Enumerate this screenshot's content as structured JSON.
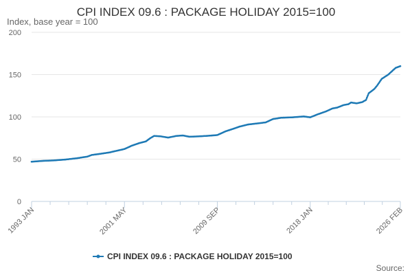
{
  "chart_data": {
    "type": "line",
    "title": "CPI INDEX 09.6 : PACKAGE HOLIDAY 2015=100",
    "subtitle": "Index, base year = 100",
    "ylim": [
      0,
      200
    ],
    "y_ticks": [
      "0",
      "50",
      "100",
      "150",
      "200"
    ],
    "x_ticks": [
      "1993 JAN",
      "2001 MAY",
      "2009 SEP",
      "2018 JAN",
      "2026 FEB"
    ],
    "grid": true,
    "legend_position": "bottom",
    "source_label": "Source:",
    "series": [
      {
        "name": "CPI INDEX 09.6 : PACKAGE HOLIDAY 2015=100",
        "color": "#1f7ab5",
        "points": [
          [
            "1993-01",
            47
          ],
          [
            "1994-01",
            48
          ],
          [
            "1995-01",
            48.5
          ],
          [
            "1996-01",
            49.5
          ],
          [
            "1997-01",
            51
          ],
          [
            "1998-01",
            53
          ],
          [
            "1998-06",
            55
          ],
          [
            "1999-01",
            56
          ],
          [
            "2000-01",
            58
          ],
          [
            "2000-09",
            60
          ],
          [
            "2001-05",
            62
          ],
          [
            "2002-01",
            66
          ],
          [
            "2002-09",
            69
          ],
          [
            "2003-04",
            71
          ],
          [
            "2003-09",
            75
          ],
          [
            "2004-01",
            77.5
          ],
          [
            "2004-08",
            77
          ],
          [
            "2005-04",
            75.5
          ],
          [
            "2006-01",
            77.5
          ],
          [
            "2006-08",
            78
          ],
          [
            "2007-03",
            76.5
          ],
          [
            "2008-01",
            77
          ],
          [
            "2008-09",
            77.5
          ],
          [
            "2009-09",
            78.5
          ],
          [
            "2010-06",
            83
          ],
          [
            "2011-01",
            85.5
          ],
          [
            "2011-09",
            88.5
          ],
          [
            "2012-06",
            91
          ],
          [
            "2013-06",
            92.5
          ],
          [
            "2014-01",
            93.5
          ],
          [
            "2014-09",
            97.5
          ],
          [
            "2015-06",
            99
          ],
          [
            "2016-06",
            99.5
          ],
          [
            "2017-06",
            100.5
          ],
          [
            "2018-01",
            99.5
          ],
          [
            "2018-09",
            103
          ],
          [
            "2019-06",
            106.5
          ],
          [
            "2020-01",
            110
          ],
          [
            "2020-06",
            111
          ],
          [
            "2021-01",
            114
          ],
          [
            "2021-06",
            115
          ],
          [
            "2021-09",
            117
          ],
          [
            "2022-03",
            116
          ],
          [
            "2022-09",
            117.5
          ],
          [
            "2023-01",
            120
          ],
          [
            "2023-04",
            128
          ],
          [
            "2023-10",
            133
          ],
          [
            "2024-01",
            137
          ],
          [
            "2024-06",
            145
          ],
          [
            "2025-01",
            150
          ],
          [
            "2025-06",
            155
          ],
          [
            "2025-09",
            158
          ],
          [
            "2026-02",
            160
          ]
        ]
      }
    ]
  }
}
